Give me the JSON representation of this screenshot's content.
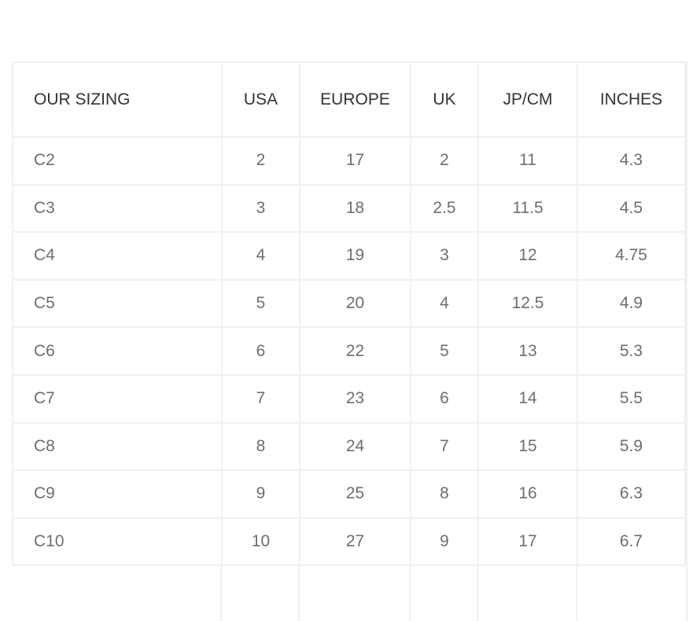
{
  "table": {
    "headers": [
      "OUR SIZING",
      "USA",
      "EUROPE",
      "UK",
      "JP/CM",
      "INCHES"
    ],
    "rows": [
      [
        "C2",
        "2",
        "17",
        "2",
        "11",
        "4.3"
      ],
      [
        "C3",
        "3",
        "18",
        "2.5",
        "11.5",
        "4.5"
      ],
      [
        "C4",
        "4",
        "19",
        "3",
        "12",
        "4.75"
      ],
      [
        "C5",
        "5",
        "20",
        "4",
        "12.5",
        "4.9"
      ],
      [
        "C6",
        "6",
        "22",
        "5",
        "13",
        "5.3"
      ],
      [
        "C7",
        "7",
        "23",
        "6",
        "14",
        "5.5"
      ],
      [
        "C8",
        "8",
        "24",
        "7",
        "15",
        "5.9"
      ],
      [
        "C9",
        "9",
        "25",
        "8",
        "16",
        "6.3"
      ],
      [
        "C10",
        "10",
        "27",
        "9",
        "17",
        "6.7"
      ]
    ]
  }
}
